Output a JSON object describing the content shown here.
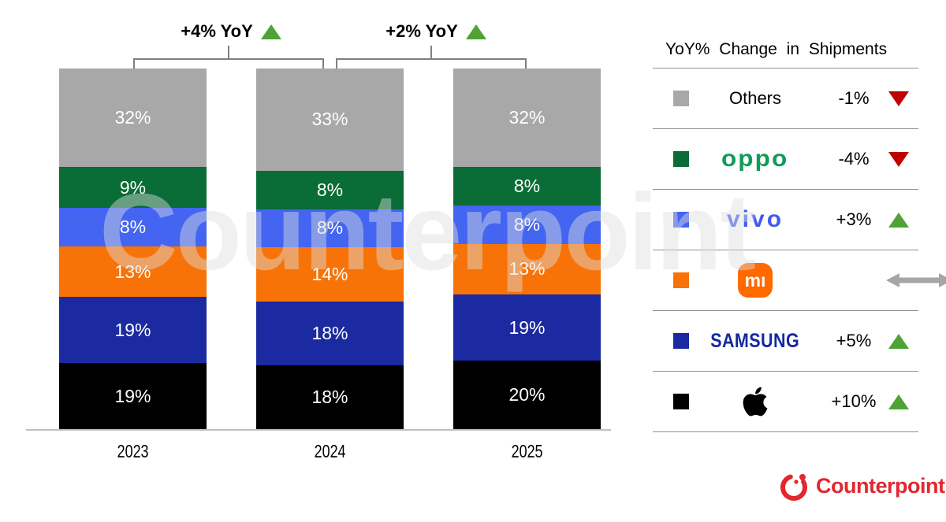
{
  "chart_data": {
    "type": "bar",
    "subtype": "stacked-100",
    "unit": "%",
    "categories": [
      "2023",
      "2024",
      "2025"
    ],
    "series": [
      {
        "name": "Others",
        "color": "#A8A8A8",
        "values": [
          32,
          33,
          32
        ]
      },
      {
        "name": "OPPO",
        "color": "#0A6C36",
        "values": [
          9,
          8,
          8
        ]
      },
      {
        "name": "vivo",
        "color": "#4365F1",
        "values": [
          8,
          8,
          8
        ]
      },
      {
        "name": "Xiaomi",
        "color": "#F87307",
        "values": [
          13,
          14,
          13
        ]
      },
      {
        "name": "Samsung",
        "color": "#1B2AA0",
        "values": [
          19,
          18,
          19
        ]
      },
      {
        "name": "Apple",
        "color": "#000000",
        "values": [
          19,
          18,
          20
        ]
      }
    ],
    "annotations": [
      {
        "between": [
          "2023",
          "2024"
        ],
        "label": "+4% YoY",
        "direction": "up"
      },
      {
        "between": [
          "2024",
          "2025"
        ],
        "label": "+2% YoY",
        "direction": "up"
      }
    ],
    "legend_position": "right",
    "grid": false
  },
  "legend": {
    "title": "YoY% Change in Shipments",
    "rows": [
      {
        "name": "Others",
        "display": "Others",
        "change": "-1%",
        "direction": "down",
        "swatch": "#A8A8A8"
      },
      {
        "name": "OPPO",
        "display": "oppo",
        "change": "-4%",
        "direction": "down",
        "swatch": "#0A6C36",
        "logo_color": "#129B57"
      },
      {
        "name": "vivo",
        "display": "vivo",
        "change": "+3%",
        "direction": "up",
        "swatch": "#4365F1",
        "logo_color": "#415BF0"
      },
      {
        "name": "Xiaomi",
        "display": "mı",
        "change": "",
        "direction": "flat",
        "swatch": "#F87307",
        "logo_bg": "#FF6900"
      },
      {
        "name": "Samsung",
        "display": "SAMSUNG",
        "change": "+5%",
        "direction": "up",
        "swatch": "#1B2AA0",
        "logo_color": "#1428A0"
      },
      {
        "name": "Apple",
        "display": "",
        "change": "+10%",
        "direction": "up",
        "swatch": "#000000"
      }
    ]
  },
  "watermark": {
    "text": "Counterpoint"
  },
  "footer": {
    "brand": "Counterpoint",
    "brand_color": "#E2272E"
  },
  "colors": {
    "up_arrow": "#4FA235",
    "down_arrow": "#C00000",
    "flat_arrow": "#A6A6A6",
    "bracket": "#808080",
    "axis_line": "#BFBFBF"
  }
}
